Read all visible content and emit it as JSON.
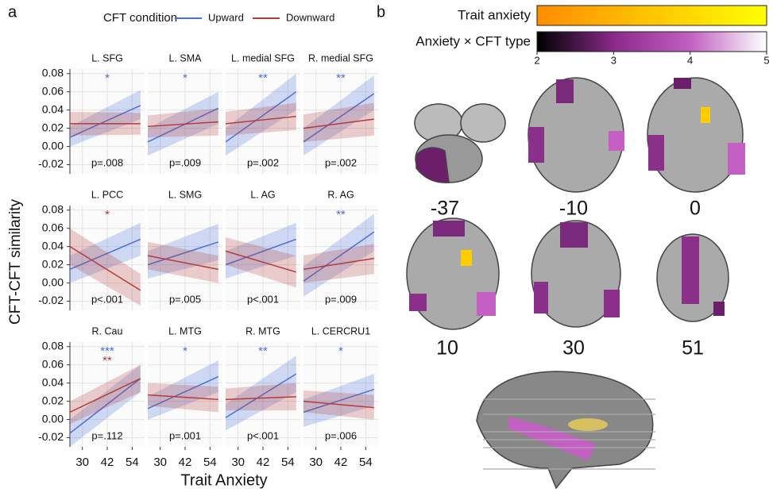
{
  "panel_labels": [
    "a",
    "b"
  ],
  "legend": {
    "title": "CFT condition",
    "entries": [
      {
        "name": "Upward",
        "color": "#4a6fd6"
      },
      {
        "name": "Downward",
        "color": "#b83a3a"
      }
    ]
  },
  "shared_axes": {
    "xlabel": "Trait Anxiety",
    "ylabel": "CFT-CFT similarity",
    "xlim": [
      24,
      60
    ],
    "xticks": [
      30,
      42,
      54
    ],
    "ylim": [
      -0.03,
      0.085
    ],
    "yticks": [
      -0.02,
      {
        "value": 0,
        "label": "0.00"
      },
      0.02,
      0.04,
      0.06,
      0.08
    ],
    "grid": true
  },
  "chart_data": [
    {
      "type": "line",
      "title": "L. SFG",
      "x": [
        24,
        58
      ],
      "series": [
        {
          "color": "#4a6fd6",
          "values": [
            0.01,
            0.045
          ],
          "lower": [
            0.0,
            0.03
          ],
          "upper": [
            0.022,
            0.062
          ]
        },
        {
          "color": "#b83a3a",
          "values": [
            0.025,
            0.025
          ],
          "lower": [
            0.012,
            0.013
          ],
          "upper": [
            0.038,
            0.037
          ]
        }
      ],
      "stars": [
        {
          "text": "*",
          "color": "#4a6fd6"
        }
      ],
      "p_text": "p=.008"
    },
    {
      "type": "line",
      "title": "L. SMA",
      "x": [
        24,
        58
      ],
      "series": [
        {
          "color": "#4a6fd6",
          "values": [
            0.005,
            0.042
          ],
          "lower": [
            -0.01,
            0.025
          ],
          "upper": [
            0.02,
            0.06
          ]
        },
        {
          "color": "#b83a3a",
          "values": [
            0.022,
            0.027
          ],
          "lower": [
            0.01,
            0.012
          ],
          "upper": [
            0.034,
            0.042
          ]
        }
      ],
      "stars": [
        {
          "text": "*",
          "color": "#4a6fd6"
        }
      ],
      "p_text": "p=.009"
    },
    {
      "type": "line",
      "title": "L. medial SFG",
      "x": [
        24,
        58
      ],
      "series": [
        {
          "color": "#4a6fd6",
          "values": [
            0.005,
            0.06
          ],
          "lower": [
            -0.01,
            0.04
          ],
          "upper": [
            0.02,
            0.08
          ]
        },
        {
          "color": "#b83a3a",
          "values": [
            0.025,
            0.033
          ],
          "lower": [
            0.012,
            0.018
          ],
          "upper": [
            0.038,
            0.048
          ]
        }
      ],
      "stars": [
        {
          "text": "**",
          "color": "#4a6fd6"
        }
      ],
      "p_text": "p=.002"
    },
    {
      "type": "line",
      "title": "R. medial SFG",
      "x": [
        24,
        58
      ],
      "series": [
        {
          "color": "#4a6fd6",
          "values": [
            0.005,
            0.058
          ],
          "lower": [
            -0.01,
            0.04
          ],
          "upper": [
            0.02,
            0.078
          ]
        },
        {
          "color": "#b83a3a",
          "values": [
            0.02,
            0.03
          ],
          "lower": [
            0.005,
            0.012
          ],
          "upper": [
            0.035,
            0.048
          ]
        }
      ],
      "stars": [
        {
          "text": "**",
          "color": "#4a6fd6"
        }
      ],
      "p_text": "p=.002"
    },
    {
      "type": "line",
      "title": "L. PCC",
      "x": [
        24,
        58
      ],
      "series": [
        {
          "color": "#4a6fd6",
          "values": [
            0.015,
            0.048
          ],
          "lower": [
            0.0,
            0.03
          ],
          "upper": [
            0.03,
            0.066
          ]
        },
        {
          "color": "#b83a3a",
          "values": [
            0.04,
            -0.008
          ],
          "lower": [
            0.02,
            -0.025
          ],
          "upper": [
            0.06,
            0.01
          ]
        }
      ],
      "stars": [
        {
          "text": "*",
          "color": "#b83a3a"
        }
      ],
      "p_text": "p<.001"
    },
    {
      "type": "line",
      "title": "L. SMG",
      "x": [
        24,
        58
      ],
      "series": [
        {
          "color": "#4a6fd6",
          "values": [
            0.02,
            0.045
          ],
          "lower": [
            0.005,
            0.025
          ],
          "upper": [
            0.035,
            0.065
          ]
        },
        {
          "color": "#b83a3a",
          "values": [
            0.03,
            0.015
          ],
          "lower": [
            0.015,
            0.0
          ],
          "upper": [
            0.045,
            0.03
          ]
        }
      ],
      "stars": [],
      "p_text": "p=.005"
    },
    {
      "type": "line",
      "title": "L. AG",
      "x": [
        24,
        58
      ],
      "series": [
        {
          "color": "#4a6fd6",
          "values": [
            0.02,
            0.048
          ],
          "lower": [
            0.005,
            0.03
          ],
          "upper": [
            0.035,
            0.066
          ]
        },
        {
          "color": "#b83a3a",
          "values": [
            0.035,
            0.012
          ],
          "lower": [
            0.02,
            -0.005
          ],
          "upper": [
            0.05,
            0.03
          ]
        }
      ],
      "stars": [],
      "p_text": "p<.001"
    },
    {
      "type": "line",
      "title": "R. AG",
      "x": [
        24,
        58
      ],
      "series": [
        {
          "color": "#4a6fd6",
          "values": [
            0.002,
            0.056
          ],
          "lower": [
            -0.015,
            0.035
          ],
          "upper": [
            0.018,
            0.076
          ]
        },
        {
          "color": "#b83a3a",
          "values": [
            0.015,
            0.027
          ],
          "lower": [
            0.0,
            0.01
          ],
          "upper": [
            0.03,
            0.043
          ]
        }
      ],
      "stars": [
        {
          "text": "**",
          "color": "#4a6fd6"
        }
      ],
      "p_text": "p=.009"
    },
    {
      "type": "line",
      "title": "R. Cau",
      "x": [
        24,
        58
      ],
      "series": [
        {
          "color": "#4a6fd6",
          "values": [
            -0.015,
            0.045
          ],
          "lower": [
            -0.03,
            0.03
          ],
          "upper": [
            0.0,
            0.06
          ]
        },
        {
          "color": "#b83a3a",
          "values": [
            0.008,
            0.045
          ],
          "lower": [
            -0.005,
            0.03
          ],
          "upper": [
            0.02,
            0.06
          ]
        }
      ],
      "stars": [
        {
          "text": "***",
          "color": "#4a6fd6"
        },
        {
          "text": "**",
          "color": "#b83a3a"
        }
      ],
      "p_text": "p=.112"
    },
    {
      "type": "line",
      "title": "L. MTG",
      "x": [
        24,
        58
      ],
      "series": [
        {
          "color": "#4a6fd6",
          "values": [
            0.012,
            0.047
          ],
          "lower": [
            0.0,
            0.03
          ],
          "upper": [
            0.025,
            0.065
          ]
        },
        {
          "color": "#b83a3a",
          "values": [
            0.027,
            0.022
          ],
          "lower": [
            0.015,
            0.008
          ],
          "upper": [
            0.04,
            0.036
          ]
        }
      ],
      "stars": [
        {
          "text": "*",
          "color": "#4a6fd6"
        }
      ],
      "p_text": "p=.001"
    },
    {
      "type": "line",
      "title": "R. MTG",
      "x": [
        24,
        58
      ],
      "series": [
        {
          "color": "#4a6fd6",
          "values": [
            0.002,
            0.05
          ],
          "lower": [
            -0.012,
            0.03
          ],
          "upper": [
            0.017,
            0.07
          ]
        },
        {
          "color": "#b83a3a",
          "values": [
            0.022,
            0.025
          ],
          "lower": [
            0.01,
            0.01
          ],
          "upper": [
            0.034,
            0.04
          ]
        }
      ],
      "stars": [
        {
          "text": "**",
          "color": "#4a6fd6"
        }
      ],
      "p_text": "p<.001"
    },
    {
      "type": "line",
      "title": "L. CERCRU1",
      "x": [
        24,
        58
      ],
      "series": [
        {
          "color": "#4a6fd6",
          "values": [
            0.008,
            0.033
          ],
          "lower": [
            -0.008,
            0.015
          ],
          "upper": [
            0.022,
            0.05
          ]
        },
        {
          "color": "#b83a3a",
          "values": [
            0.02,
            0.013
          ],
          "lower": [
            0.008,
            0.0
          ],
          "upper": [
            0.032,
            0.027
          ]
        }
      ],
      "stars": [
        {
          "text": "*",
          "color": "#4a6fd6"
        }
      ],
      "p_text": "p=.006"
    }
  ],
  "colorbars": [
    {
      "label": "Trait anxiety",
      "colors": [
        "#ff8c00",
        "#ffff00"
      ]
    },
    {
      "label": "Anxiety × CFT type",
      "colors": [
        "#000000",
        "#8a2a8a",
        "#c060c0",
        "#ffffff"
      ],
      "lim": [
        2,
        5
      ],
      "ticks": [
        2,
        3,
        4,
        5
      ]
    }
  ],
  "slices": [
    "-37",
    "-10",
    "0",
    "10",
    "30",
    "51"
  ]
}
